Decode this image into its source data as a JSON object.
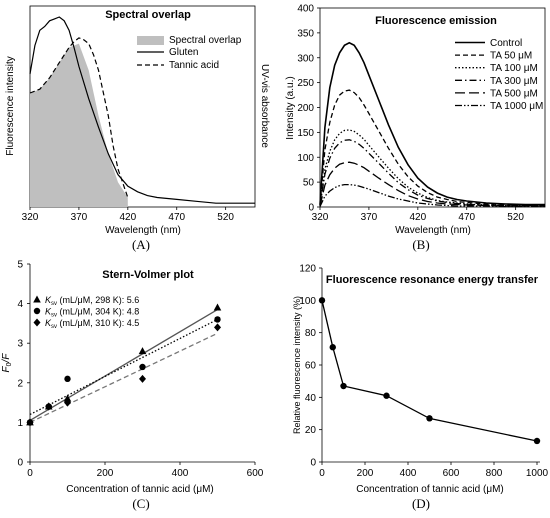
{
  "panels": [
    {
      "panel_label": "(A)",
      "chart_data": {
        "type": "area",
        "title": "Spectral overlap",
        "xlabel": "Wavelength   (nm)",
        "ylabel_left": "Fluorescence intensity",
        "ylabel_right": "UV-vis absorbance",
        "xlim": [
          320,
          550
        ],
        "x_ticks": [
          320,
          370,
          420,
          470,
          520
        ],
        "x_tick_labels": [
          "320",
          "370",
          "420",
          "470",
          "520"
        ],
        "legend_position": "top-right",
        "overlap_color": "#bfbfbf",
        "series": [
          {
            "name": "Spectral overlap",
            "style": "fill",
            "x": [
              320,
              330,
              340,
              350,
              360,
              370,
              380,
              390,
              400,
              410,
              420
            ],
            "y": [
              0.6,
              0.62,
              0.68,
              0.76,
              0.84,
              0.86,
              0.72,
              0.48,
              0.28,
              0.13,
              0.05
            ]
          },
          {
            "name": "Gluten",
            "style": "solid",
            "x": [
              320,
              325,
              330,
              335,
              340,
              345,
              350,
              355,
              360,
              365,
              370,
              380,
              390,
              400,
              410,
              420,
              430,
              440,
              450,
              470,
              490,
              510,
              530,
              550
            ],
            "y": [
              0.7,
              0.85,
              0.93,
              0.95,
              0.98,
              0.99,
              1.0,
              0.98,
              0.93,
              0.84,
              0.74,
              0.57,
              0.42,
              0.28,
              0.17,
              0.11,
              0.08,
              0.06,
              0.05,
              0.04,
              0.03,
              0.02,
              0.02,
              0.02
            ]
          },
          {
            "name": "Tannic acid",
            "style": "dashed",
            "x": [
              320,
              330,
              340,
              350,
              355,
              360,
              365,
              370,
              375,
              380,
              385,
              390,
              395,
              400,
              405,
              410,
              420
            ],
            "y": [
              0.6,
              0.62,
              0.68,
              0.76,
              0.8,
              0.84,
              0.87,
              0.89,
              0.88,
              0.86,
              0.8,
              0.72,
              0.6,
              0.48,
              0.32,
              0.2,
              0.05
            ]
          }
        ]
      }
    },
    {
      "panel_label": "(B)",
      "chart_data": {
        "type": "line",
        "title": "Fluorescence emission",
        "xlabel": "Wavelength   (nm)",
        "ylabel": "Intensity  (a.u.)",
        "xlim": [
          320,
          550
        ],
        "ylim": [
          0,
          400
        ],
        "x_ticks": [
          320,
          370,
          420,
          470,
          520
        ],
        "x_tick_labels": [
          "320",
          "370",
          "420",
          "470",
          "520"
        ],
        "y_ticks": [
          0,
          50,
          100,
          150,
          200,
          250,
          300,
          350,
          400
        ],
        "y_tick_labels": [
          "0",
          "50",
          "100",
          "150",
          "200",
          "250",
          "300",
          "350",
          "400"
        ],
        "legend_position": "top-right",
        "x": [
          320,
          325,
          330,
          335,
          340,
          345,
          350,
          355,
          360,
          365,
          370,
          380,
          390,
          400,
          410,
          420,
          430,
          440,
          450,
          460,
          470,
          490,
          510,
          530,
          550
        ],
        "series": [
          {
            "name": "Control",
            "style": "solid",
            "values": [
              5,
              160,
              240,
              285,
              310,
              325,
              330,
              325,
              310,
              290,
              265,
              215,
              165,
              120,
              85,
              58,
              40,
              28,
              20,
              15,
              12,
              8,
              6,
              5,
              5
            ]
          },
          {
            "name": "TA 50 μM",
            "style": "dashed",
            "values": [
              4,
              115,
              170,
              205,
              225,
              233,
              235,
              230,
              220,
              205,
              188,
              153,
              118,
              86,
              61,
              42,
              29,
              20,
              15,
              11,
              9,
              6,
              5,
              4,
              4
            ]
          },
          {
            "name": "TA 100 μM",
            "style": "dotted",
            "values": [
              3,
              76,
              112,
              135,
              148,
              154,
              155,
              152,
              145,
              136,
              124,
              101,
              78,
              57,
              40,
              28,
              19,
              13,
              10,
              8,
              6,
              4,
              3,
              3,
              3
            ]
          },
          {
            "name": "TA 300 μM",
            "style": "dashdot",
            "values": [
              3,
              66,
              98,
              118,
              129,
              134,
              135,
              132,
              126,
              118,
              108,
              88,
              68,
              49,
              35,
              24,
              17,
              12,
              9,
              7,
              5,
              4,
              3,
              3,
              3
            ]
          },
          {
            "name": "TA 500 μM",
            "style": "longdash",
            "values": [
              2,
              44,
              65,
              78,
              86,
              89,
              90,
              88,
              84,
              79,
              72,
              58,
              45,
              33,
              23,
              16,
              11,
              8,
              6,
              5,
              4,
              3,
              2,
              2,
              2
            ]
          },
          {
            "name": "TA 1000 μM",
            "style": "dashdotdot",
            "values": [
              1,
              22,
              32,
              39,
              43,
              45,
              45,
              44,
              42,
              39,
              36,
              29,
              22,
              16,
              12,
              8,
              6,
              4,
              3,
              2,
              2,
              2,
              1,
              1,
              1
            ]
          }
        ]
      }
    },
    {
      "panel_label": "(C)",
      "chart_data": {
        "type": "scatter",
        "title": "Stern-Volmer plot",
        "xlabel": "Concentration of tannic acid (μM)",
        "ylabel_main": "F",
        "ylabel_sub": "0",
        "ylabel_tail": "/F",
        "xlim": [
          0,
          600
        ],
        "ylim": [
          0,
          5
        ],
        "x_ticks": [
          0,
          200,
          400,
          600
        ],
        "x_tick_labels": [
          "0",
          "200",
          "400",
          "600"
        ],
        "y_ticks": [
          0,
          1,
          2,
          3,
          4,
          5
        ],
        "y_tick_labels": [
          "0",
          "1",
          "2",
          "3",
          "4",
          "5"
        ],
        "legend_position": "top-left",
        "legend_main": "K",
        "legend_sub": "sv",
        "series": [
          {
            "name": "(mL/μM, 298 K): 5.6",
            "marker": "triangle",
            "line_style": "solid",
            "line_color": "#555555",
            "x": [
              0,
              50,
              100,
              300,
              500
            ],
            "values": [
              1.0,
              1.4,
              1.6,
              2.8,
              3.9
            ],
            "fit": [
              1.05,
              3.85
            ]
          },
          {
            "name": "(mL/μM, 304 K): 4.8",
            "marker": "circle",
            "line_style": "dotted",
            "line_color": "#000000",
            "x": [
              0,
              50,
              100,
              300,
              500
            ],
            "values": [
              1.0,
              1.4,
              2.1,
              2.4,
              3.6
            ],
            "fit": [
              1.2,
              3.6
            ]
          },
          {
            "name": "(mL/μM, 310 K): 4.5",
            "marker": "diamond",
            "line_style": "dashed",
            "line_color": "#777777",
            "x": [
              0,
              50,
              100,
              300,
              500
            ],
            "values": [
              1.0,
              1.4,
              1.5,
              2.1,
              3.4
            ],
            "fit": [
              1.0,
              3.25
            ]
          }
        ]
      }
    },
    {
      "panel_label": "(D)",
      "chart_data": {
        "type": "line",
        "title": "Fluorescence resonance energy transfer",
        "xlabel": "Concentration of tannic acid (μM)",
        "ylabel": "Relative fluorescence intensity (%)",
        "xlim": [
          0,
          1000
        ],
        "ylim": [
          0,
          120
        ],
        "x_ticks": [
          0,
          200,
          400,
          600,
          800,
          1000
        ],
        "x_tick_labels": [
          "0",
          "200",
          "400",
          "600",
          "800",
          "1000"
        ],
        "y_ticks": [
          0,
          20,
          40,
          60,
          80,
          100,
          120
        ],
        "y_tick_labels": [
          "0",
          "20",
          "40",
          "60",
          "80",
          "100",
          "120"
        ],
        "series": [
          {
            "marker": "circle",
            "x": [
              0,
              50,
              100,
              300,
              500,
              1000
            ],
            "values": [
              100,
              71,
              47,
              41,
              27,
              13
            ]
          }
        ]
      }
    }
  ]
}
